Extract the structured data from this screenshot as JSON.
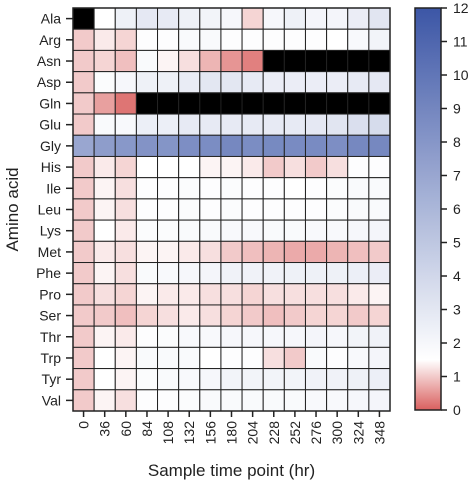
{
  "chart_data": {
    "type": "heatmap",
    "title": "",
    "xlabel": "Sample time point (hr)",
    "ylabel": "Amino acid",
    "x": [
      "0",
      "36",
      "60",
      "84",
      "108",
      "132",
      "156",
      "180",
      "204",
      "228",
      "252",
      "276",
      "300",
      "324",
      "348"
    ],
    "y": [
      "Ala",
      "Arg",
      "Asn",
      "Asp",
      "Gln",
      "Glu",
      "Gly",
      "His",
      "Ile",
      "Leu",
      "Lys",
      "Met",
      "Phe",
      "Pro",
      "Ser",
      "Thr",
      "Trp",
      "Tyr",
      "Val"
    ],
    "colorbar": {
      "range": [
        0,
        12
      ],
      "ticks": [
        "0",
        "1",
        "2",
        "3",
        "4",
        "5",
        "6",
        "7",
        "8",
        "9",
        "10",
        "11",
        "12"
      ],
      "colors": {
        "low": "#d9605f",
        "mid": "#ffffff",
        "high": "#3c56a6"
      },
      "mid_value": 1.5
    },
    "missing_color": "#000000",
    "values": [
      [
        null,
        1.5,
        2.4,
        2.9,
        2.8,
        2.4,
        2.2,
        2.0,
        1.1,
        2.0,
        2.4,
        2.1,
        2.1,
        2.6,
        3.1
      ],
      [
        1.0,
        1.3,
        1.1,
        1.6,
        1.6,
        1.8,
        1.8,
        1.6,
        1.6,
        1.6,
        1.6,
        1.6,
        1.5,
        1.9,
        2.2
      ],
      [
        1.0,
        1.1,
        0.9,
        1.8,
        1.4,
        1.2,
        0.8,
        0.5,
        0.3,
        null,
        null,
        null,
        null,
        null,
        null
      ],
      [
        1.0,
        1.7,
        2.0,
        2.4,
        2.4,
        2.7,
        3.0,
        3.0,
        2.8,
        2.6,
        2.6,
        2.6,
        2.6,
        2.8,
        2.9
      ],
      [
        1.0,
        0.6,
        0.2,
        null,
        null,
        null,
        null,
        null,
        null,
        null,
        null,
        null,
        null,
        null,
        null
      ],
      [
        1.0,
        1.8,
        1.9,
        2.5,
        2.5,
        2.8,
        2.8,
        2.8,
        2.8,
        2.8,
        2.8,
        2.9,
        3.1,
        3.5,
        3.7
      ],
      [
        7.0,
        7.6,
        7.9,
        8.2,
        8.1,
        8.5,
        8.6,
        8.9,
        8.6,
        8.8,
        8.7,
        8.7,
        8.5,
        8.9,
        8.9
      ],
      [
        1.0,
        1.3,
        1.1,
        1.5,
        1.5,
        1.5,
        1.4,
        1.4,
        1.3,
        1.0,
        1.2,
        1.0,
        1.2,
        1.6,
        1.6
      ],
      [
        1.0,
        1.4,
        1.2,
        1.6,
        1.6,
        1.7,
        1.6,
        1.7,
        1.6,
        1.6,
        1.5,
        1.6,
        1.7,
        1.8,
        1.8
      ],
      [
        1.0,
        1.4,
        1.2,
        1.6,
        1.6,
        1.7,
        1.6,
        1.7,
        1.6,
        1.6,
        1.6,
        1.6,
        1.7,
        1.8,
        1.8
      ],
      [
        1.0,
        1.5,
        1.3,
        1.7,
        1.7,
        1.8,
        1.8,
        1.9,
        1.9,
        1.8,
        1.8,
        1.9,
        1.9,
        2.0,
        2.1
      ],
      [
        1.0,
        1.3,
        1.2,
        1.4,
        1.4,
        1.3,
        1.2,
        1.0,
        0.9,
        0.8,
        0.7,
        0.7,
        0.8,
        0.9,
        1.0
      ],
      [
        1.0,
        1.4,
        1.2,
        1.8,
        1.9,
        2.0,
        2.1,
        2.3,
        2.3,
        2.3,
        2.4,
        2.4,
        2.4,
        2.5,
        2.6
      ],
      [
        1.0,
        1.2,
        1.1,
        1.4,
        1.3,
        1.3,
        1.2,
        1.2,
        1.1,
        1.2,
        1.2,
        1.2,
        1.2,
        1.3,
        1.4
      ],
      [
        1.0,
        1.0,
        0.9,
        1.1,
        1.2,
        1.3,
        1.2,
        1.1,
        1.0,
        0.9,
        1.0,
        1.1,
        1.1,
        1.0,
        1.1
      ],
      [
        1.0,
        1.4,
        1.3,
        1.6,
        1.7,
        1.9,
        1.9,
        2.0,
        2.0,
        2.0,
        2.0,
        2.1,
        2.0,
        2.2,
        2.3
      ],
      [
        1.0,
        1.5,
        1.4,
        1.8,
        1.8,
        1.8,
        1.5,
        1.6,
        1.6,
        1.2,
        1.0,
        1.8,
        1.6,
        1.9,
        2.1
      ],
      [
        1.0,
        1.5,
        1.4,
        1.7,
        1.8,
        1.9,
        2.0,
        2.2,
        2.2,
        2.2,
        2.2,
        2.3,
        2.3,
        2.4,
        2.5
      ],
      [
        1.0,
        1.4,
        1.2,
        1.6,
        1.6,
        1.7,
        1.8,
        1.8,
        1.8,
        1.8,
        1.8,
        1.9,
        1.9,
        2.0,
        2.1
      ]
    ]
  }
}
